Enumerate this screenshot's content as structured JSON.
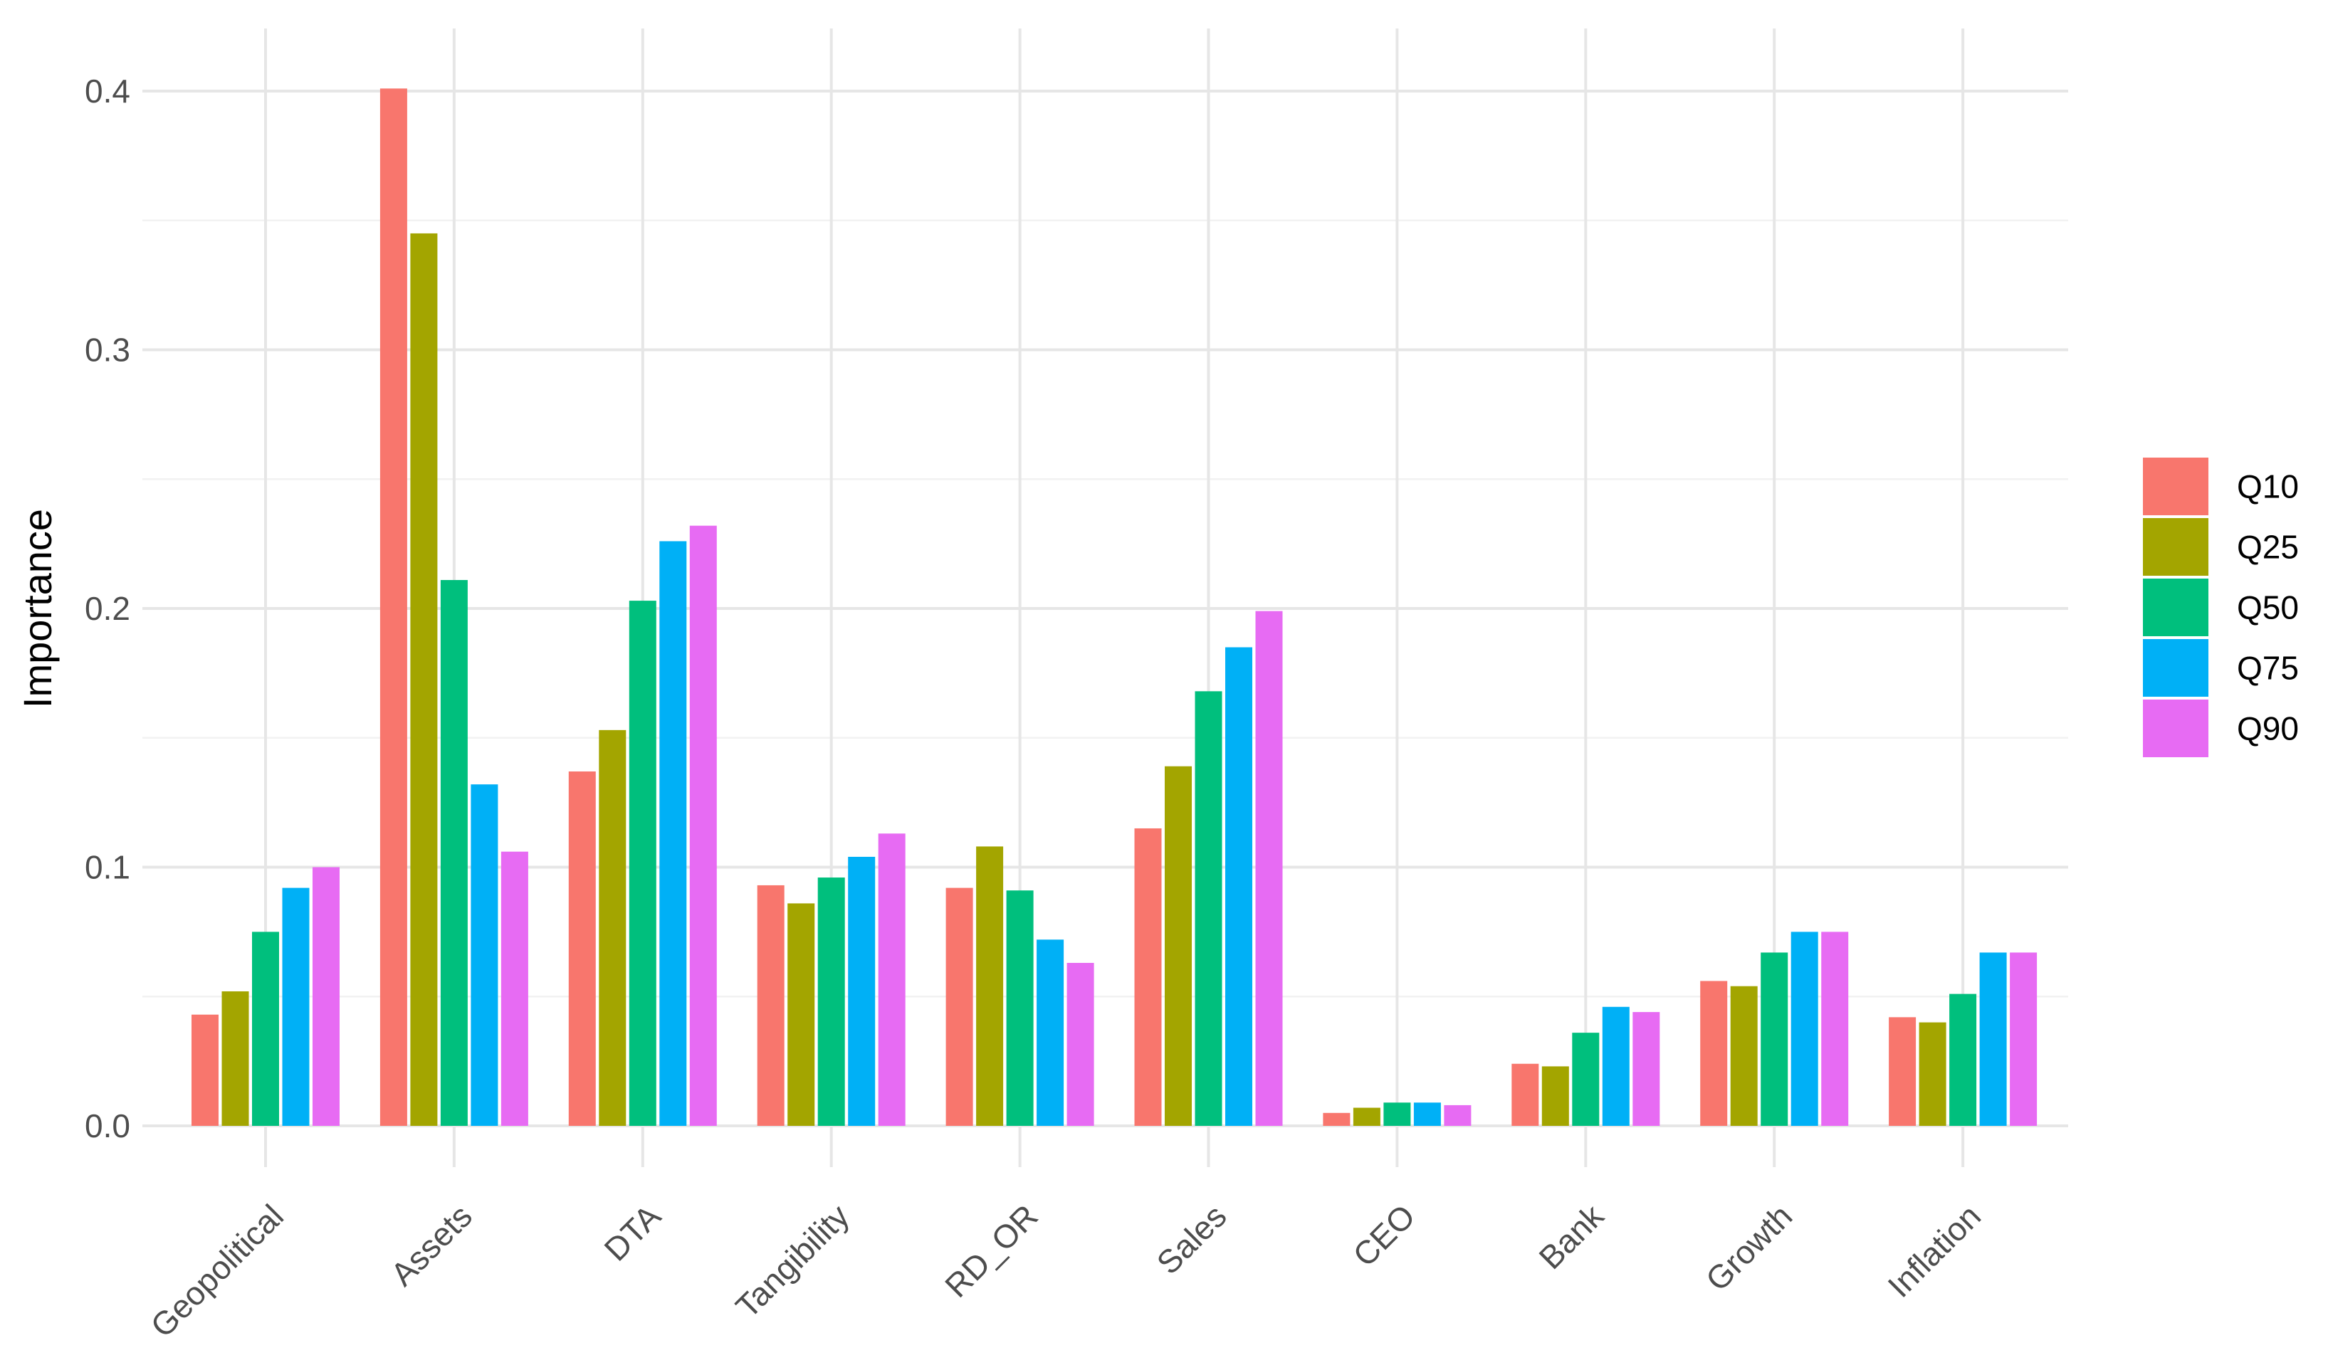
{
  "chart_data": {
    "type": "bar",
    "title": "",
    "xlabel": "",
    "ylabel": "Importance",
    "ylim": [
      -0.04,
      0.42
    ],
    "yticks": [
      "0.0",
      "0.1",
      "0.2",
      "0.3",
      "0.4"
    ],
    "grid": true,
    "legend_position": "right",
    "categories": [
      "Geopolitical",
      "Assets",
      "DTA",
      "Tangibility",
      "RD_OR",
      "Sales",
      "CEO",
      "Bank",
      "Growth",
      "Inflation"
    ],
    "series": [
      {
        "name": "Q10",
        "color": "#F8766D",
        "values": [
          0.043,
          0.401,
          0.137,
          0.093,
          0.092,
          0.115,
          0.005,
          0.024,
          0.056,
          0.042
        ]
      },
      {
        "name": "Q25",
        "color": "#A3A500",
        "values": [
          0.052,
          0.345,
          0.153,
          0.086,
          0.108,
          0.139,
          0.007,
          0.023,
          0.054,
          0.04
        ]
      },
      {
        "name": "Q50",
        "color": "#00BF7D",
        "values": [
          0.075,
          0.211,
          0.203,
          0.096,
          0.091,
          0.168,
          0.009,
          0.036,
          0.067,
          0.051
        ]
      },
      {
        "name": "Q75",
        "color": "#00B0F6",
        "values": [
          0.092,
          0.132,
          0.226,
          0.104,
          0.072,
          0.185,
          0.009,
          0.046,
          0.075,
          0.067
        ]
      },
      {
        "name": "Q90",
        "color": "#E76BF3",
        "values": [
          0.1,
          0.106,
          0.232,
          0.113,
          0.063,
          0.199,
          0.008,
          0.044,
          0.075,
          0.067
        ]
      }
    ]
  }
}
